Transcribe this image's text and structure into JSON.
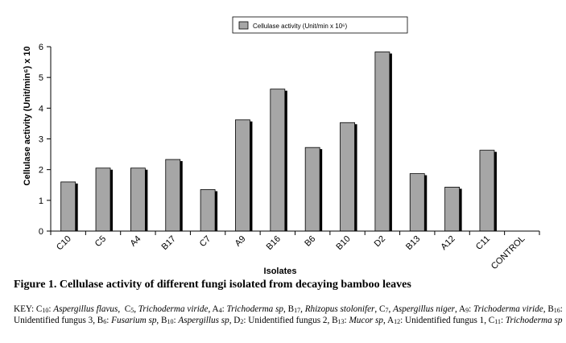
{
  "chart_data": {
    "type": "bar",
    "legend": "Cellulase activity (Unit/min x 10⁶)",
    "legend_position": "top-right",
    "xlabel": "Isolates",
    "ylabel": "Cellulase activity (Unit/min⁶) x 10",
    "ylim": [
      0,
      6
    ],
    "yticks": [
      "0",
      "1",
      "2",
      "3",
      "4",
      "5",
      "6"
    ],
    "categories": [
      "C10",
      "C5",
      "A4",
      "B17",
      "C7",
      "A9",
      "B16",
      "B6",
      "B10",
      "D2",
      "B13",
      "A12",
      "C11",
      "CONTROL"
    ],
    "values": [
      1.6,
      2.05,
      2.05,
      2.33,
      1.35,
      3.62,
      4.62,
      2.72,
      3.53,
      5.83,
      1.87,
      1.43,
      2.63,
      0
    ],
    "colors": {
      "bar_face": "#a6a6a6",
      "bar_shadow": "#000000",
      "axis": "#000000"
    }
  },
  "caption": "Figure 1. Cellulase activity of different fungi isolated from decaying bamboo leaves",
  "key": {
    "label": "KEY:",
    "entries": [
      {
        "code": "C",
        "sub": "10",
        "sep": ": ",
        "name": "Aspergillus flavus",
        "italic": true,
        "after": ",  "
      },
      {
        "code": "C",
        "sub": "5",
        "sep": ", ",
        "name": "Trichoderma viride",
        "italic": true,
        "after": ", "
      },
      {
        "code": "A",
        "sub": "4",
        "sep": ": ",
        "name": "Trichoderma sp",
        "italic": true,
        "after": ", "
      },
      {
        "code": "B",
        "sub": "17",
        "sep": ", ",
        "name": "Rhizopus stolonifer",
        "italic": true,
        "after": ", "
      },
      {
        "code": "C",
        "sub": "7",
        "sep": ", ",
        "name": "Aspergillus niger",
        "italic": true,
        "after": ", "
      },
      {
        "code": "A",
        "sub": "9",
        "sep": ": ",
        "name": "Trichoderma viride",
        "italic": true,
        "after": ", "
      },
      {
        "code": "B",
        "sub": "16",
        "sep": ": ",
        "name": "Unidentified fungus 3",
        "italic": false,
        "after": ", "
      },
      {
        "code": "B",
        "sub": "6",
        "sep": ": ",
        "name": "Fusarium sp",
        "italic": true,
        "after": ", "
      },
      {
        "code": "B",
        "sub": "10",
        "sep": ": ",
        "name": "Aspergillus sp",
        "italic": true,
        "after": ", "
      },
      {
        "code": "D",
        "sub": "2",
        "sep": ": ",
        "name": "Unidentified fungus 2",
        "italic": false,
        "after": ", "
      },
      {
        "code": "B",
        "sub": "13",
        "sep": ": ",
        "name": "Mucor sp",
        "italic": true,
        "after": ", "
      },
      {
        "code": "A",
        "sub": "12",
        "sep": ": ",
        "name": "Unidentified fungus 1",
        "italic": false,
        "after": ", "
      },
      {
        "code": "C",
        "sub": "11",
        "sep": ": ",
        "name": "Trichoderma sp",
        "italic": true,
        "after": ""
      }
    ]
  }
}
